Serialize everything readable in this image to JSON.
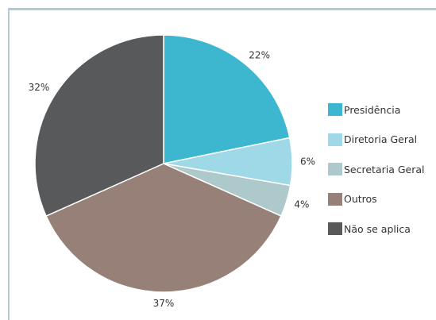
{
  "chart_data": {
    "type": "pie",
    "title": "",
    "legend_placement": "right",
    "slices": [
      {
        "label": "Presidência",
        "value": 22,
        "display": "22%",
        "color": "#3cb7cf"
      },
      {
        "label": "Diretoria Geral",
        "value": 6,
        "display": "6%",
        "color": "#9fd9e8"
      },
      {
        "label": "Secretaria Geral",
        "value": 4,
        "display": "4%",
        "color": "#adc9cc"
      },
      {
        "label": "Outros",
        "value": 37,
        "display": "37%",
        "color": "#968078"
      },
      {
        "label": "Não se aplica",
        "value": 32,
        "display": "32%",
        "color": "#58595b"
      }
    ],
    "start_direction": "top",
    "direction": "clockwise"
  }
}
